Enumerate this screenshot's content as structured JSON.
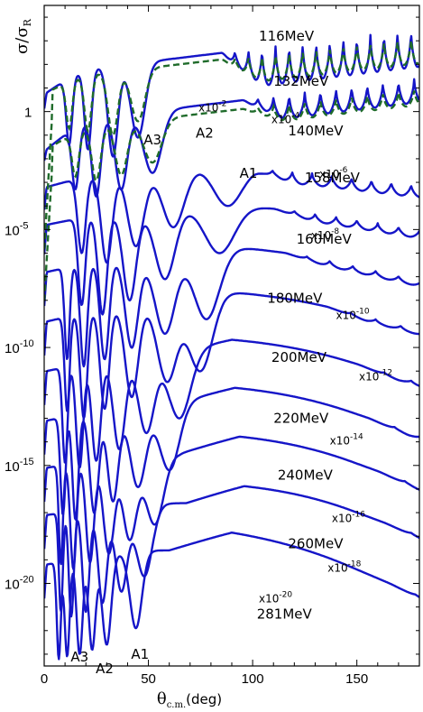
{
  "chart_data": {
    "type": "line",
    "title": "",
    "xlabel": "θc.m.(deg)",
    "xlabel_parts": {
      "symbol": "θ",
      "subscript": "c.m.",
      "unit": "(deg)"
    },
    "ylabel": "σ/σR",
    "ylabel_parts": {
      "num": "σ",
      "den": "σ",
      "sub": "R"
    },
    "xlim": [
      0,
      180
    ],
    "ylim_log10": [
      -23.5,
      4.5
    ],
    "y_scale": "log",
    "x_ticks": [
      0,
      50,
      100,
      150
    ],
    "y_ticks": [
      {
        "exp": 0,
        "text": "1"
      },
      {
        "exp": -5,
        "text": "10",
        "sup": "-5"
      },
      {
        "exp": -10,
        "text": "10",
        "sup": "-10"
      },
      {
        "exp": -15,
        "text": "10",
        "sup": "-15"
      },
      {
        "exp": -20,
        "text": "10",
        "sup": "-20"
      }
    ],
    "grid": false,
    "legend": "none",
    "series_color": "#1515c8",
    "fit_color": "#1f6b2a",
    "series": [
      {
        "name": "116MeV",
        "scale_text": "",
        "scale_exp": 0,
        "label_at": [
          103,
          3.0
        ],
        "scale_at": [
          0,
          0
        ],
        "cross_log": 0.1,
        "plateau_log": 0.8,
        "rise_log": 1.9,
        "peak_x": 30,
        "hump_amp": 0.0,
        "minima": [
          [
            12,
            -1.4,
            3
          ],
          [
            21,
            -1.6,
            3.5
          ],
          [
            33,
            -1.9,
            5
          ],
          [
            45,
            -1.1,
            7
          ]
        ],
        "osc_amp": 1.6,
        "osc_period": 6.5,
        "osc_start": 85
      },
      {
        "name": "132MeV",
        "scale_text": "x10",
        "scale_sup": "-2",
        "scale_exp": -2,
        "label_at": [
          110,
          1.1
        ],
        "scale_at": [
          74,
          0.0
        ],
        "cross_log": -2.1,
        "plateau_log": -1.6,
        "rise_log": -0.2,
        "peak_x": 32,
        "hump_amp": 0.0,
        "minima": [
          [
            15,
            -3.3,
            3.5
          ],
          [
            25,
            -3.6,
            4.5
          ],
          [
            37,
            -3.3,
            6
          ],
          [
            52,
            -2.6,
            9
          ]
        ],
        "osc_amp": 1.0,
        "osc_period": 7.5,
        "osc_start": 95
      },
      {
        "name": "140MeV",
        "scale_text": "x10",
        "scale_sup": "-4",
        "scale_exp": -4,
        "label_at": [
          117,
          -1.0
        ],
        "scale_at": [
          109,
          -0.5
        ],
        "cross_log": -4.2,
        "plateau_log": -3.2,
        "rise_log": -2.6,
        "peak_x": 40,
        "hump_amp": 0.9,
        "minima": [
          [
            18,
            -6.0,
            4
          ],
          [
            30,
            -6.4,
            5.5
          ],
          [
            44,
            -5.7,
            8
          ],
          [
            62,
            -4.9,
            11
          ],
          [
            88,
            -4.0,
            14
          ]
        ],
        "osc_amp": 0.5,
        "osc_period": 9.5,
        "osc_start": 100
      },
      {
        "name": "158MeV",
        "scale_text": "x10",
        "scale_sup": "-6",
        "scale_exp": -6,
        "label_at": [
          125,
          -3.0
        ],
        "scale_at": [
          132,
          -2.8
        ],
        "cross_log": -6.1,
        "plateau_log": -4.8,
        "rise_log": -4.3,
        "peak_x": 45,
        "hump_amp": 1.2,
        "minima": [
          [
            18,
            -8.2,
            3.5
          ],
          [
            28,
            -8.6,
            4.5
          ],
          [
            41,
            -8.0,
            6.5
          ],
          [
            58,
            -7.1,
            10
          ],
          [
            84,
            -6.0,
            15
          ]
        ],
        "osc_amp": 0.35,
        "osc_period": 10,
        "osc_start": 110
      },
      {
        "name": "160MeV",
        "scale_text": "x10",
        "scale_sup": "-8",
        "scale_exp": -8,
        "label_at": [
          121,
          -5.6
        ],
        "scale_at": [
          128,
          -5.4
        ],
        "cross_log": -8.3,
        "plateau_log": -6.8,
        "rise_log": -6.2,
        "peak_x": 50,
        "hump_amp": 1.6,
        "minima": [
          [
            11,
            -10.5,
            2.5
          ],
          [
            19,
            -10.8,
            3.5
          ],
          [
            29,
            -10.5,
            4.5
          ],
          [
            42,
            -10.0,
            6.5
          ],
          [
            58,
            -9.4,
            10
          ],
          [
            78,
            -8.8,
            13
          ]
        ],
        "osc_amp": 0.25,
        "osc_period": 11,
        "osc_start": 115
      },
      {
        "name": "180MeV",
        "scale_text": "x10",
        "scale_sup": "-10",
        "scale_exp": -10,
        "label_at": [
          107,
          -8.1
        ],
        "scale_at": [
          140,
          -8.8
        ],
        "cross_log": -10.4,
        "plateau_log": -8.9,
        "rise_log": -8.2,
        "peak_x": 55,
        "hump_amp": 1.8,
        "minima": [
          [
            11,
            -12.7,
            2.5
          ],
          [
            19,
            -13.0,
            3.5
          ],
          [
            29,
            -12.6,
            4.5
          ],
          [
            42,
            -12.1,
            6.5
          ],
          [
            59,
            -11.4,
            9.5
          ],
          [
            75,
            -11.0,
            12
          ]
        ],
        "osc_amp": 0.18,
        "osc_period": 12,
        "osc_start": 135
      },
      {
        "name": "200MeV",
        "scale_text": "x10",
        "scale_sup": "-12",
        "scale_exp": -12,
        "label_at": [
          109,
          -10.6
        ],
        "scale_at": [
          151,
          -11.4
        ],
        "cross_log": -12.5,
        "plateau_log": -11.0,
        "rise_log": -10.3,
        "peak_x": 60,
        "hump_amp": 2.0,
        "minima": [
          [
            10,
            -14.9,
            2.5
          ],
          [
            17,
            -15.1,
            3.5
          ],
          [
            25,
            -14.8,
            4.5
          ],
          [
            36,
            -14.3,
            6
          ],
          [
            49,
            -13.6,
            8
          ],
          [
            65,
            -13.0,
            11
          ]
        ],
        "osc_amp": 0.15,
        "osc_period": 13,
        "osc_start": 150
      },
      {
        "name": "220MeV",
        "scale_text": "x10",
        "scale_sup": "-14",
        "scale_exp": -14,
        "label_at": [
          110,
          -13.2
        ],
        "scale_at": [
          137,
          -14.1
        ],
        "cross_log": -14.6,
        "plateau_log": -13.1,
        "rise_log": -12.4,
        "peak_x": 62,
        "hump_amp": 2.2,
        "minima": [
          [
            9,
            -17.1,
            2.5
          ],
          [
            15,
            -17.3,
            3
          ],
          [
            24,
            -17.0,
            4.5
          ],
          [
            33,
            -16.5,
            5.5
          ],
          [
            45,
            -15.9,
            8
          ],
          [
            60,
            -15.2,
            10
          ]
        ],
        "osc_amp": 0.15,
        "osc_period": 13,
        "osc_start": 155
      },
      {
        "name": "240MeV",
        "scale_text": "x10",
        "scale_sup": "-16",
        "scale_exp": -16,
        "label_at": [
          112,
          -15.6
        ],
        "scale_at": [
          138,
          -17.4
        ],
        "cross_log": -16.6,
        "plateau_log": -15.1,
        "rise_log": -14.5,
        "peak_x": 65,
        "hump_amp": 2.3,
        "minima": [
          [
            8,
            -19.2,
            2
          ],
          [
            14,
            -19.4,
            3
          ],
          [
            22,
            -19.1,
            4
          ],
          [
            31,
            -18.7,
            5.5
          ],
          [
            41,
            -18.1,
            7
          ],
          [
            53,
            -17.5,
            9
          ]
        ],
        "osc_amp": 0.15,
        "osc_period": 13,
        "osc_start": 160
      },
      {
        "name": "260MeV",
        "scale_text": "x10",
        "scale_sup": "-18",
        "scale_exp": -18,
        "label_at": [
          117,
          -18.5
        ],
        "scale_at": [
          136,
          -19.5
        ],
        "cross_log": -18.6,
        "plateau_log": -17.1,
        "rise_log": -16.6,
        "peak_x": 68,
        "hump_amp": 2.3,
        "minima": [
          [
            8,
            -21.2,
            2
          ],
          [
            13,
            -21.4,
            2.5
          ],
          [
            20,
            -21.2,
            3.5
          ],
          [
            28,
            -20.8,
            4.5
          ],
          [
            37,
            -20.3,
            6
          ],
          [
            48,
            -19.7,
            8
          ]
        ],
        "osc_amp": 0.12,
        "osc_period": 13,
        "osc_start": 163
      },
      {
        "name": "281MeV",
        "scale_text": "x10",
        "scale_sup": "-20",
        "scale_exp": -20,
        "label_at": [
          102,
          -21.5
        ],
        "scale_at": [
          103,
          -20.8
        ],
        "cross_log": -20.7,
        "plateau_log": -19.2,
        "rise_log": -18.6,
        "peak_x": 60,
        "hump_amp": 2.4,
        "minima": [
          [
            7,
            -23.2,
            2
          ],
          [
            11,
            -23.1,
            2.5
          ],
          [
            17,
            -23.0,
            3
          ],
          [
            23,
            -22.8,
            3.5
          ],
          [
            30,
            -22.6,
            4.5
          ],
          [
            44,
            -21.9,
            6
          ]
        ],
        "osc_amp": 0.1,
        "osc_period": 13,
        "osc_start": 165,
        "tail_drop": 4.5
      }
    ],
    "fits": [
      {
        "name": "fit-116",
        "of": "116MeV"
      },
      {
        "name": "fit-132",
        "of": "132MeV"
      }
    ],
    "annotations": [
      {
        "text": "A3",
        "at": [
          52,
          -1.4
        ]
      },
      {
        "text": "A2",
        "at": [
          77,
          -1.1
        ]
      },
      {
        "text": "A1",
        "at": [
          98,
          -2.8
        ]
      },
      {
        "text": "A3",
        "at": [
          17,
          -23.3
        ]
      },
      {
        "text": "A2",
        "at": [
          29,
          -23.8
        ]
      },
      {
        "text": "A1",
        "at": [
          46,
          -23.2
        ]
      }
    ]
  }
}
